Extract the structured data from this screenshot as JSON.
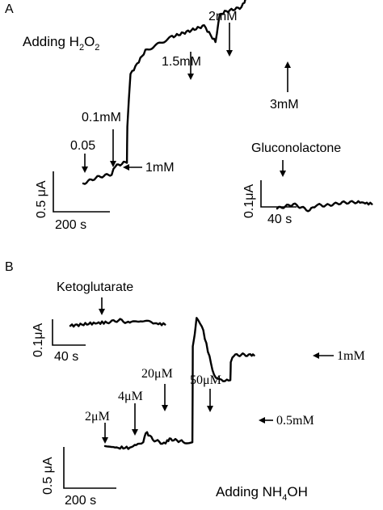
{
  "panels": {
    "a": {
      "letter": "A",
      "title_parts": [
        "Adding H",
        "2",
        "O",
        "2"
      ],
      "main_scale": {
        "y": "0.5 μA",
        "x": "200 s"
      },
      "annotations": [
        "0.05",
        "0.1mM",
        "1mM",
        "1.5mM",
        "2mM",
        "3mM"
      ],
      "inset": {
        "label": "Gluconolactone",
        "y": "0.1μA",
        "x": "40 s"
      }
    },
    "b": {
      "letter": "B",
      "title_parts": [
        "Adding NH",
        "4",
        "OH"
      ],
      "main_scale": {
        "y": "0.5 μA",
        "x": "200 s"
      },
      "annotations": [
        "2μM",
        "4μM",
        "20μM",
        "50μM",
        "0.5mM",
        "1mM"
      ],
      "inset": {
        "label": "Ketoglutarate",
        "y": "0.1μA",
        "x": "40 s"
      }
    }
  },
  "chart_data": [
    {
      "type": "line",
      "panel": "A",
      "title": "Adding H2O2",
      "xlabel": "",
      "ylabel": "",
      "scale_bars": {
        "x": "200 s",
        "y": "0.5 μA"
      },
      "x_unit": "s",
      "y_unit": "μA (relative)",
      "series": [
        {
          "x": [
            0,
            40,
            80,
            90,
            123,
            124,
            133,
            175,
            250,
            340,
            368,
            372,
            384,
            398,
            445,
            470,
            518,
            540,
            544,
            548,
            556,
            600,
            660,
            727
          ],
          "values": [
            0,
            0.04,
            0.06,
            0.11,
            0.14,
            0.37,
            0.7,
            0.85,
            0.94,
            1.01,
            0.92,
            0.91,
            1.08,
            1.1,
            1.13,
            1.24,
            1.3,
            1.26,
            1.29,
            1.41,
            1.49,
            1.54,
            1.58,
            1.61
          ]
        }
      ],
      "annotations": [
        {
          "label": "0.05",
          "x": 40
        },
        {
          "label": "0.1mM",
          "x": 80
        },
        {
          "label": "1mM",
          "x": 123
        },
        {
          "label": "1.5mM",
          "x": 368
        },
        {
          "label": "2mM",
          "x": 398
        },
        {
          "label": "3mM",
          "x": 540
        }
      ]
    },
    {
      "type": "line",
      "panel": "A inset",
      "title": "",
      "scale_bars": {
        "x": "40 s",
        "y": "0.1μA"
      },
      "series": [
        {
          "x": [
            0,
            30,
            60,
            72,
            90,
            120,
            150,
            175
          ],
          "values": [
            0,
            0.006,
            -0.003,
            0.005,
            0.004,
            0.008,
            0.009,
            0.006
          ]
        }
      ],
      "annotations": [
        {
          "label": "Gluconolactone",
          "x": 53
        }
      ]
    },
    {
      "type": "line",
      "panel": "B",
      "title": "Adding NH4OH",
      "xlabel": "",
      "ylabel": "",
      "scale_bars": {
        "x": "200 s",
        "y": "0.5 μA"
      },
      "x_unit": "s",
      "y_unit": "μA (relative)",
      "series": [
        {
          "x": [
            0,
            60,
            112,
            140,
            172,
            183,
            195,
            215,
            265,
            280,
            290,
            302,
            359,
            393,
            395,
            412,
            435,
            470,
            490,
            515,
            540,
            564,
            566,
            580,
            620,
            660,
            671
          ],
          "values": [
            0,
            -0.02,
            -0.02,
            0.02,
            0.04,
            0.17,
            0.14,
            0.08,
            0.03,
            0.06,
            0.09,
            0.08,
            0.05,
            0.05,
            1.2,
            1.54,
            1.47,
            1.08,
            0.87,
            0.8,
            0.8,
            0.8,
            1.03,
            1.1,
            1.11,
            1.1,
            1.1
          ]
        }
      ],
      "annotations": [
        {
          "label": "2μM",
          "x": 30
        },
        {
          "label": "4μM",
          "x": 87
        },
        {
          "label": "20μM",
          "x": 172
        },
        {
          "label": "50μM",
          "x": 280
        },
        {
          "label": "0.5mM",
          "x": 393
        },
        {
          "label": "1mM",
          "x": 564
        }
      ]
    },
    {
      "type": "line",
      "panel": "B inset",
      "title": "",
      "scale_bars": {
        "x": "40 s",
        "y": "0.1μA"
      },
      "series": [
        {
          "x": [
            0,
            40,
            68,
            92,
            110,
            130,
            150,
            175
          ],
          "values": [
            0,
            0.004,
            0.006,
            0.01,
            0.004,
            0.01,
            0.005,
            0.002
          ]
        }
      ],
      "annotations": [
        {
          "label": "Ketoglutarate",
          "x": 55
        }
      ]
    }
  ]
}
